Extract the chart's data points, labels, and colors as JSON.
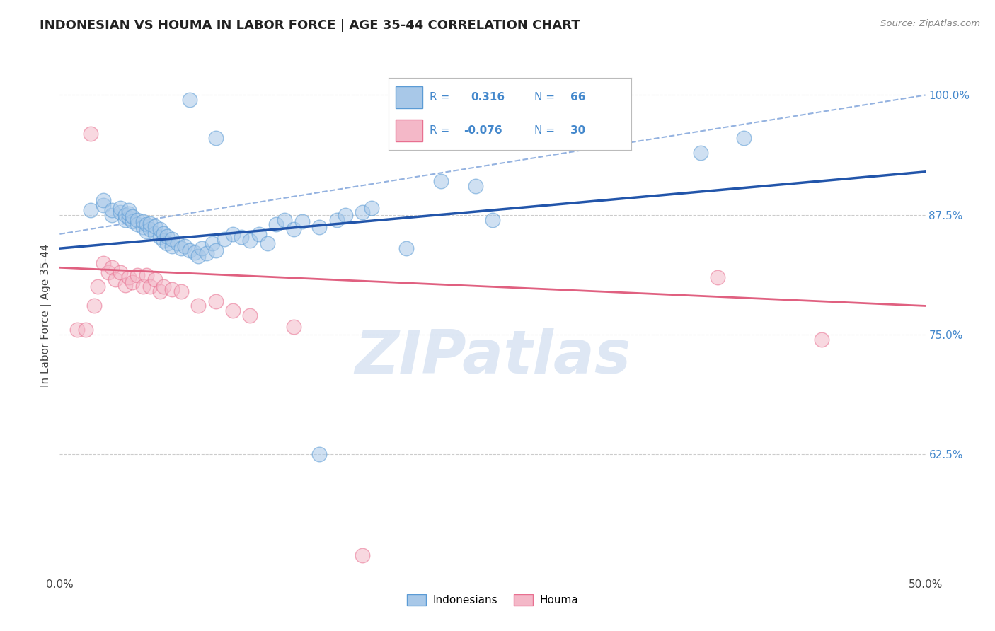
{
  "title": "INDONESIAN VS HOUMA IN LABOR FORCE | AGE 35-44 CORRELATION CHART",
  "source_text": "Source: ZipAtlas.com",
  "ylabel": "In Labor Force | Age 35-44",
  "xlim": [
    0.0,
    0.5
  ],
  "ylim": [
    0.5,
    1.04
  ],
  "xticks": [
    0.0,
    0.1,
    0.2,
    0.3,
    0.4,
    0.5
  ],
  "xtick_labels": [
    "0.0%",
    "",
    "",
    "",
    "",
    "50.0%"
  ],
  "yticks_right": [
    0.625,
    0.75,
    0.875,
    1.0
  ],
  "ytick_labels_right": [
    "62.5%",
    "75.0%",
    "87.5%",
    "100.0%"
  ],
  "blue_color": "#a8c8e8",
  "blue_edge": "#5b9bd5",
  "pink_color": "#f4b8c8",
  "pink_edge": "#e87090",
  "blue_line_color": "#2255aa",
  "pink_line_color": "#e06080",
  "dashed_line_color": "#88aadd",
  "grid_color": "#cccccc",
  "right_label_color": "#4488cc",
  "blue_x": [
    0.018,
    0.025,
    0.025,
    0.03,
    0.03,
    0.035,
    0.035,
    0.038,
    0.038,
    0.04,
    0.04,
    0.04,
    0.042,
    0.042,
    0.045,
    0.045,
    0.048,
    0.048,
    0.05,
    0.05,
    0.052,
    0.052,
    0.055,
    0.055,
    0.058,
    0.058,
    0.06,
    0.06,
    0.062,
    0.062,
    0.065,
    0.065,
    0.068,
    0.07,
    0.072,
    0.075,
    0.078,
    0.08,
    0.082,
    0.085,
    0.088,
    0.09,
    0.095,
    0.1,
    0.105,
    0.11,
    0.115,
    0.12,
    0.125,
    0.13,
    0.135,
    0.14,
    0.15,
    0.16,
    0.165,
    0.175,
    0.18,
    0.22,
    0.24,
    0.37,
    0.395,
    0.15,
    0.2,
    0.25,
    0.09,
    0.075
  ],
  "blue_y": [
    0.88,
    0.885,
    0.89,
    0.875,
    0.88,
    0.878,
    0.882,
    0.87,
    0.875,
    0.872,
    0.876,
    0.88,
    0.868,
    0.873,
    0.865,
    0.87,
    0.862,
    0.868,
    0.858,
    0.865,
    0.86,
    0.866,
    0.856,
    0.863,
    0.852,
    0.86,
    0.848,
    0.856,
    0.845,
    0.853,
    0.842,
    0.85,
    0.845,
    0.84,
    0.842,
    0.838,
    0.836,
    0.832,
    0.84,
    0.835,
    0.845,
    0.838,
    0.85,
    0.855,
    0.852,
    0.848,
    0.855,
    0.845,
    0.865,
    0.87,
    0.86,
    0.868,
    0.862,
    0.87,
    0.875,
    0.878,
    0.882,
    0.91,
    0.905,
    0.94,
    0.955,
    0.625,
    0.84,
    0.87,
    0.955,
    0.995
  ],
  "pink_x": [
    0.01,
    0.015,
    0.018,
    0.02,
    0.022,
    0.025,
    0.028,
    0.03,
    0.032,
    0.035,
    0.038,
    0.04,
    0.042,
    0.045,
    0.048,
    0.05,
    0.052,
    0.055,
    0.058,
    0.06,
    0.065,
    0.07,
    0.08,
    0.09,
    0.1,
    0.11,
    0.135,
    0.38,
    0.44,
    0.175
  ],
  "pink_y": [
    0.755,
    0.755,
    0.96,
    0.78,
    0.8,
    0.825,
    0.815,
    0.82,
    0.808,
    0.815,
    0.802,
    0.81,
    0.805,
    0.812,
    0.8,
    0.812,
    0.8,
    0.808,
    0.795,
    0.8,
    0.797,
    0.795,
    0.78,
    0.785,
    0.775,
    0.77,
    0.758,
    0.81,
    0.745,
    0.52
  ],
  "blue_trend_x": [
    0.0,
    0.5
  ],
  "blue_trend_y": [
    0.84,
    0.92
  ],
  "pink_trend_x": [
    0.0,
    0.5
  ],
  "pink_trend_y": [
    0.82,
    0.78
  ],
  "dashed_trend_x": [
    0.0,
    0.5
  ],
  "dashed_trend_y": [
    0.855,
    1.0
  ],
  "watermark": "ZIPatlas",
  "marker_size": 220,
  "alpha_fill": 0.55,
  "legend_R_blue": "0.316",
  "legend_N_blue": "66",
  "legend_R_pink": "-0.076",
  "legend_N_pink": "30"
}
